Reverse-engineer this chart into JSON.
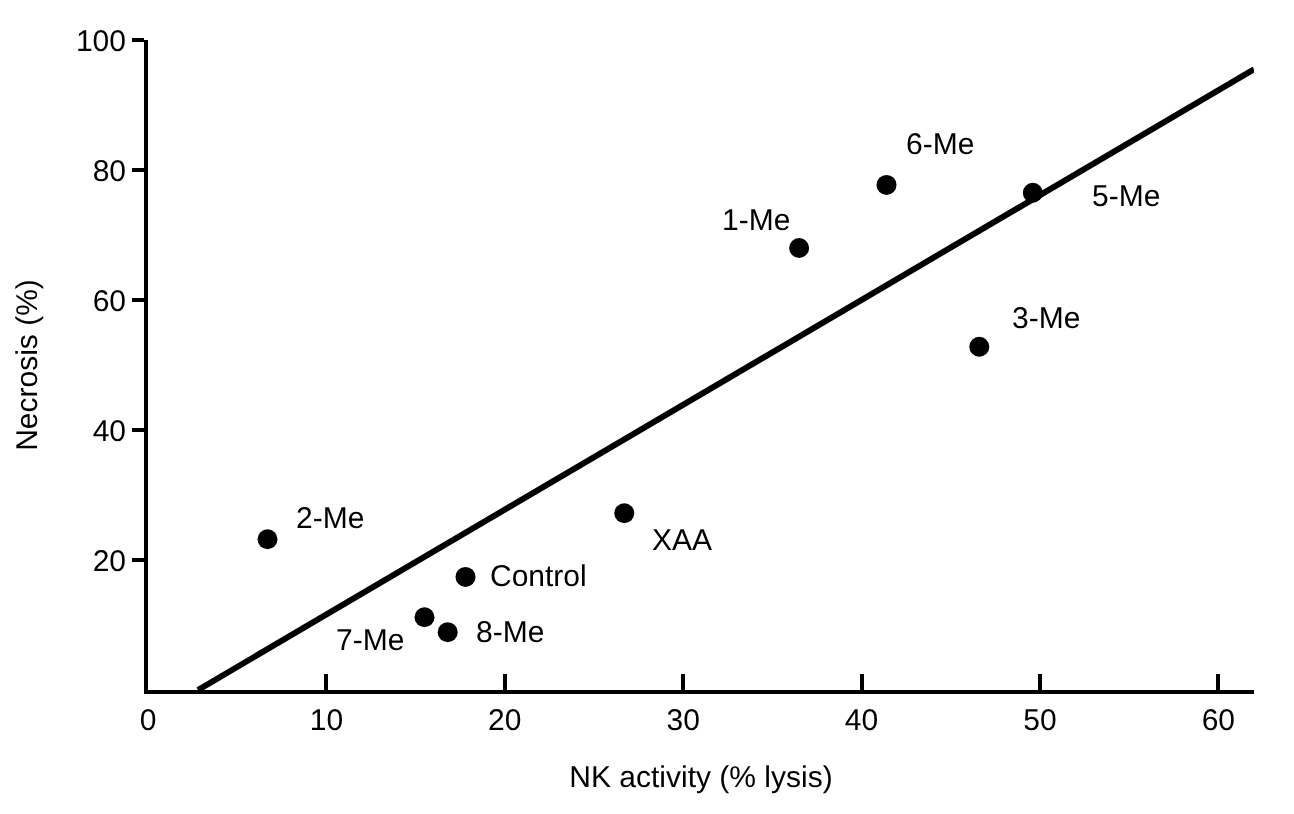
{
  "chart_data": {
    "type": "scatter",
    "xlabel": "NK activity (% lysis)",
    "ylabel": "Necrosis (%)",
    "xlim": [
      0,
      62
    ],
    "ylim": [
      0,
      100
    ],
    "xticks": [
      0,
      10,
      20,
      30,
      40,
      50,
      60
    ],
    "yticks": [
      20,
      40,
      60,
      80,
      100
    ],
    "marker": "circle",
    "series": [
      {
        "color": "#000000",
        "x": [
          6.7,
          17.8,
          15.5,
          16.8,
          26.7,
          36.5,
          41.4,
          49.6,
          46.6
        ],
        "values": [
          23.2,
          17.4,
          11.2,
          8.9,
          27.2,
          68.0,
          77.7,
          76.5,
          52.8
        ]
      },
      {
        "type": "line",
        "color": "#000000",
        "x": [
          2.8,
          62
        ],
        "values": [
          0,
          95.5
        ],
        "line_style": "solid",
        "marker": "none"
      }
    ],
    "annotations": [
      {
        "text": "2-Me",
        "x": 6.7,
        "y": 23.2
      },
      {
        "text": "Control",
        "x": 17.8,
        "y": 17.4
      },
      {
        "text": "7-Me",
        "x": 15.5,
        "y": 11.2
      },
      {
        "text": "8-Me",
        "x": 16.8,
        "y": 8.9
      },
      {
        "text": "XAA",
        "x": 26.7,
        "y": 27.2
      },
      {
        "text": "1-Me",
        "x": 36.5,
        "y": 68.0
      },
      {
        "text": "6-Me",
        "x": 41.4,
        "y": 77.7
      },
      {
        "text": "5-Me",
        "x": 49.6,
        "y": 76.5
      },
      {
        "text": "3-Me",
        "x": 46.6,
        "y": 52.8
      }
    ]
  }
}
